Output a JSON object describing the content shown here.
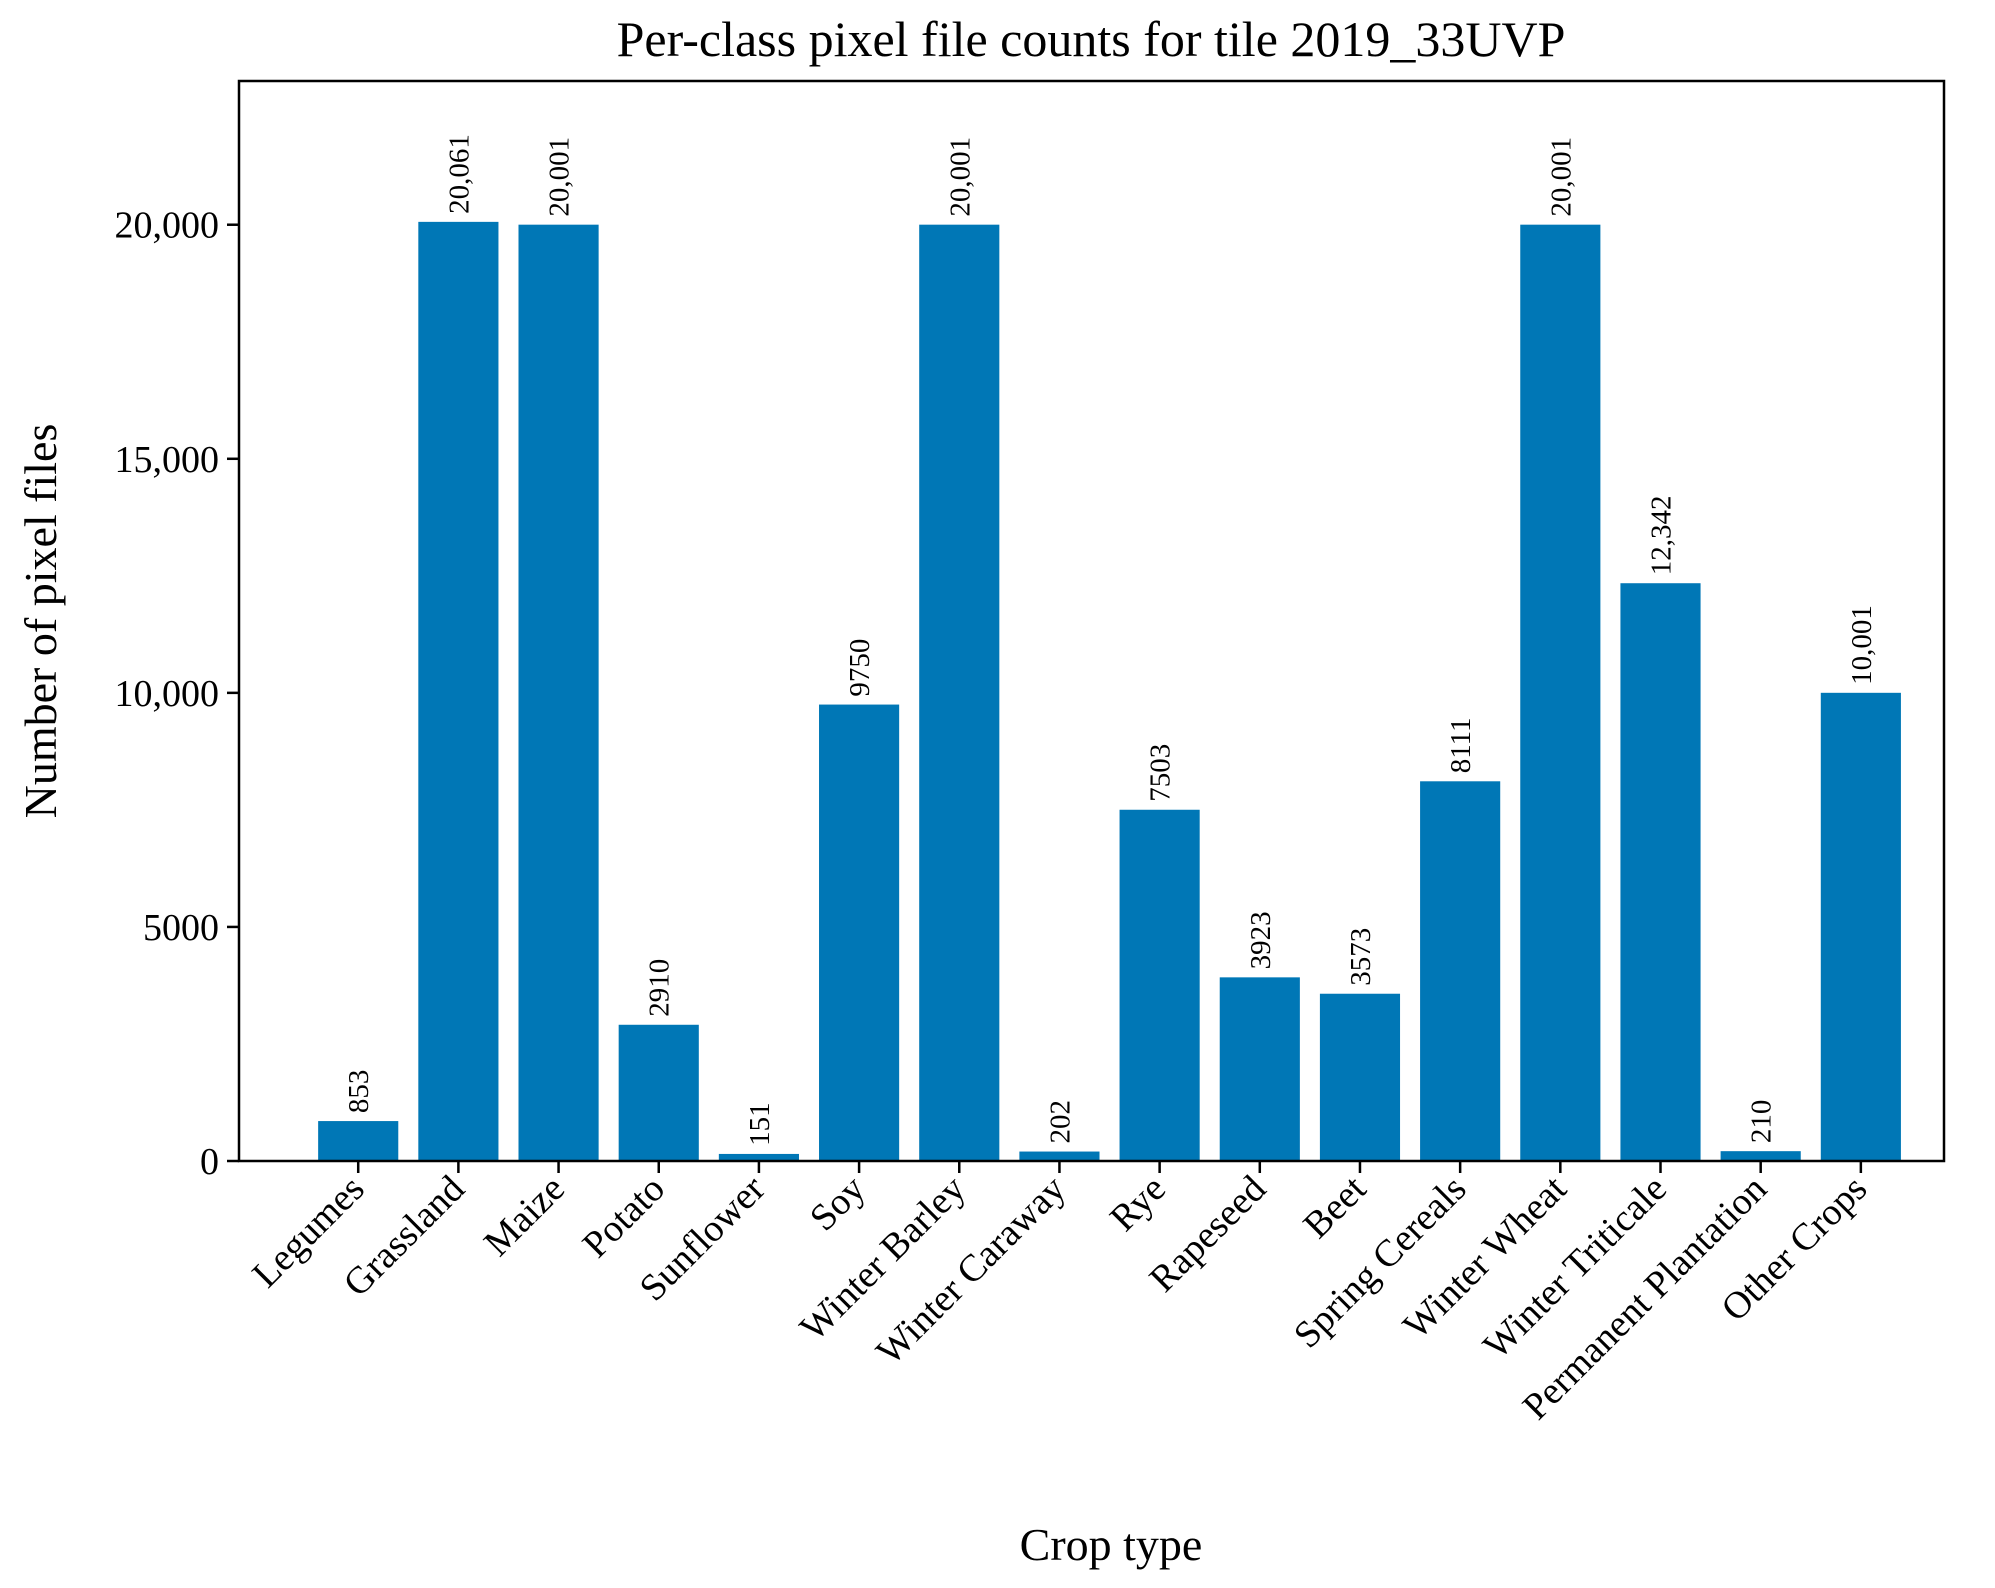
{
  "chart_data": {
    "type": "bar",
    "title": "Per-class pixel file counts for tile 2019_33UVP",
    "xlabel": "Crop type",
    "ylabel": "Number of pixel files",
    "categories": [
      "Legumes",
      "Grassland",
      "Maize",
      "Potato",
      "Sunflower",
      "Soy",
      "Winter Barley",
      "Winter Caraway",
      "Rye",
      "Rapeseed",
      "Beet",
      "Spring Cereals",
      "Winter Wheat",
      "Winter Triticale",
      "Permanent Plantation",
      "Other Crops"
    ],
    "values": [
      853,
      20061,
      20001,
      2910,
      151,
      9750,
      20001,
      202,
      7503,
      3923,
      3573,
      8111,
      20001,
      12342,
      210,
      10001
    ],
    "value_labels": [
      "853",
      "20,061",
      "20,001",
      "2910",
      "151",
      "9750",
      "20,001",
      "202",
      "7503",
      "3923",
      "3573",
      "8111",
      "20,001",
      "12,342",
      "210",
      "10,001"
    ],
    "yticks": [
      0,
      5000,
      10000,
      15000,
      20000
    ],
    "ytick_labels": [
      "0",
      "5000",
      "10,000",
      "15,000",
      "20,000"
    ],
    "ylim": [
      0,
      23070
    ],
    "grid": false,
    "bar_color": "#0077b6"
  }
}
